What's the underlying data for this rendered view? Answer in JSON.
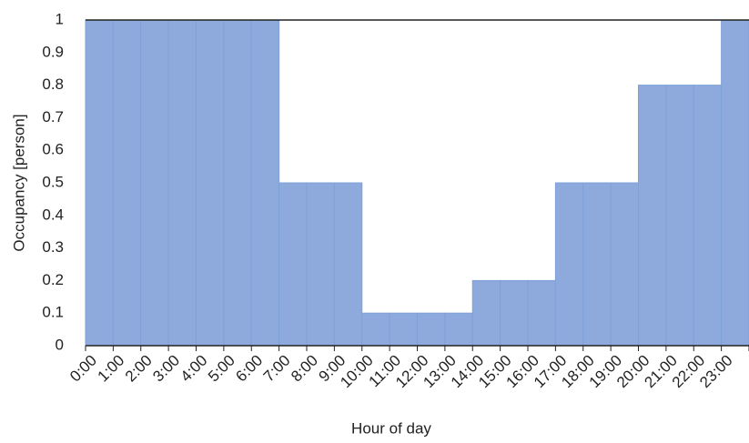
{
  "chart_data": {
    "type": "bar",
    "x_label": "Hour of day",
    "y_label": "Occupancy [person]",
    "categories": [
      "0:00",
      "1:00",
      "2:00",
      "3:00",
      "4:00",
      "5:00",
      "6:00",
      "7:00",
      "8:00",
      "9:00",
      "10:00",
      "11:00",
      "12:00",
      "13:00",
      "14:00",
      "15:00",
      "16:00",
      "17:00",
      "18:00",
      "19:00",
      "20:00",
      "21:00",
      "22:00",
      "23:00"
    ],
    "values": [
      1,
      1,
      1,
      1,
      1,
      1,
      1,
      0.5,
      0.5,
      0.5,
      0.1,
      0.1,
      0.1,
      0.1,
      0.2,
      0.2,
      0.2,
      0.5,
      0.5,
      0.5,
      0.8,
      0.8,
      0.8,
      1
    ],
    "color": "#8eaadc",
    "ylim": [
      0,
      1
    ],
    "yticks": [
      0,
      0.1,
      0.2,
      0.3,
      0.4,
      0.5,
      0.6,
      0.7,
      0.8,
      0.9,
      1
    ],
    "grid": false
  }
}
